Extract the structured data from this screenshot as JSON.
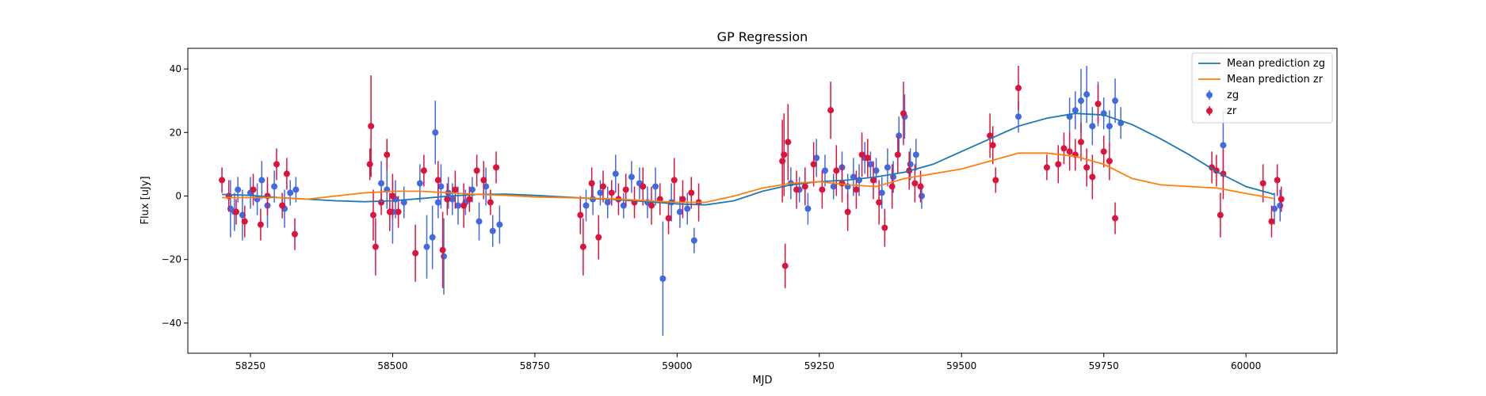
{
  "chart_data": {
    "type": "scatter",
    "title": "GP Regression",
    "xlabel": "MJD",
    "ylabel": "Flux [uJy]",
    "xlim": [
      58140,
      60160
    ],
    "ylim": [
      -49.5,
      46.5
    ],
    "xticks": [
      58250,
      58500,
      58750,
      59000,
      59250,
      59500,
      59750,
      60000
    ],
    "yticks": [
      -40,
      -20,
      0,
      20,
      40
    ],
    "grid": false,
    "legend_position": "top-right",
    "colors": {
      "zg": "#4169e1",
      "zr": "#dc143c",
      "mean_zg": "#1f77b4",
      "mean_zr": "#ff7f0e"
    },
    "lines": [
      {
        "name": "Mean prediction zg",
        "x": [
          58200,
          58250,
          58300,
          58350,
          58400,
          58450,
          58500,
          58550,
          58600,
          58650,
          58700,
          58750,
          58800,
          58850,
          58900,
          58950,
          59000,
          59050,
          59100,
          59150,
          59200,
          59250,
          59300,
          59350,
          59400,
          59450,
          59500,
          59550,
          59600,
          59650,
          59700,
          59750,
          59800,
          59850,
          59900,
          59950,
          60000,
          60050
        ],
        "y": [
          0.5,
          0.2,
          -0.5,
          -1.0,
          -1.5,
          -1.8,
          -1.5,
          -0.8,
          0.0,
          0.5,
          0.6,
          0.2,
          -0.3,
          -0.8,
          -1.2,
          -1.8,
          -2.5,
          -2.8,
          -1.5,
          1.5,
          3.5,
          4.5,
          5.0,
          6.0,
          7.5,
          10.0,
          14.0,
          18.0,
          22.0,
          24.5,
          26.0,
          25.5,
          22.5,
          18.0,
          13.0,
          7.5,
          3.0,
          0.5
        ]
      },
      {
        "name": "Mean prediction zr",
        "x": [
          58200,
          58250,
          58300,
          58350,
          58400,
          58450,
          58500,
          58550,
          58600,
          58650,
          58700,
          58750,
          58800,
          58850,
          58900,
          58950,
          59000,
          59050,
          59100,
          59150,
          59200,
          59250,
          59300,
          59350,
          59400,
          59450,
          59500,
          59550,
          59600,
          59650,
          59700,
          59750,
          59800,
          59850,
          59900,
          59950,
          60000,
          60050
        ],
        "y": [
          -0.5,
          -0.5,
          -0.5,
          -1.0,
          0.0,
          1.0,
          1.5,
          1.5,
          1.0,
          0.5,
          0.2,
          -0.3,
          -0.5,
          -0.7,
          -1.0,
          -1.5,
          -2.0,
          -2.0,
          0.0,
          2.5,
          4.0,
          4.5,
          3.5,
          3.0,
          5.5,
          7.0,
          8.5,
          11.0,
          13.5,
          13.5,
          12.5,
          10.0,
          5.5,
          3.5,
          3.0,
          2.5,
          0.8,
          -0.8
        ]
      }
    ],
    "series": [
      {
        "name": "zg",
        "x": [
          58215,
          58222,
          58228,
          58236,
          58250,
          58262,
          58270,
          58280,
          58292,
          58310,
          58320,
          58330,
          58480,
          58490,
          58500,
          58505,
          58520,
          58548,
          58560,
          58570,
          58575,
          58580,
          58585,
          58590,
          58598,
          58605,
          58615,
          58628,
          58640,
          58652,
          58664,
          58676,
          58688,
          58840,
          58852,
          58865,
          58878,
          58892,
          58906,
          58920,
          58934,
          58948,
          58962,
          58975,
          58990,
          59005,
          59018,
          59030,
          59200,
          59215,
          59230,
          59245,
          59260,
          59275,
          59290,
          59300,
          59310,
          59320,
          59330,
          59340,
          59350,
          59360,
          59370,
          59380,
          59390,
          59400,
          59410,
          59420,
          59430,
          59600,
          59690,
          59700,
          59710,
          59720,
          59730,
          59740,
          59750,
          59760,
          59770,
          59780,
          59960,
          60050,
          60060
        ],
        "y": [
          -4,
          -5,
          2,
          -6,
          1,
          -1,
          5,
          -3,
          3,
          -4,
          1,
          2,
          4,
          2,
          -5,
          -1,
          -2,
          4,
          -16,
          -13,
          20,
          -2,
          3,
          -19,
          1,
          -1,
          -3,
          -2,
          2,
          -8,
          3,
          -11,
          -9,
          -3,
          -1,
          1,
          -2,
          7,
          -3,
          6,
          4,
          -2,
          3,
          -26,
          -2,
          -5,
          -4,
          -14,
          4,
          2,
          -4,
          12,
          8,
          3,
          9,
          3,
          6,
          5,
          12,
          10,
          8,
          1,
          9,
          6,
          19,
          25,
          10,
          13,
          0,
          25,
          25,
          27,
          30,
          32,
          22,
          29,
          26,
          22,
          30,
          23,
          16,
          -4,
          -3
        ],
        "err": [
          9,
          6,
          4,
          8,
          5,
          5,
          6,
          7,
          5,
          6,
          4,
          4,
          7,
          6,
          10,
          6,
          5,
          6,
          10,
          10,
          10,
          5,
          7,
          12,
          5,
          5,
          6,
          4,
          4,
          6,
          6,
          5,
          6,
          5,
          5,
          4,
          5,
          6,
          4,
          5,
          5,
          5,
          6,
          18,
          6,
          5,
          5,
          4,
          5,
          4,
          5,
          6,
          5,
          4,
          5,
          4,
          6,
          5,
          5,
          4,
          4,
          5,
          6,
          5,
          6,
          7,
          5,
          5,
          4,
          5,
          6,
          6,
          10,
          9,
          6,
          7,
          5,
          5,
          7,
          5,
          11,
          5,
          5
        ]
      },
      {
        "name": "zr",
        "x": [
          58200,
          58212,
          58225,
          58240,
          58255,
          58268,
          58280,
          58296,
          58306,
          58314,
          58328,
          58460,
          58462,
          58466,
          58470,
          58480,
          58490,
          58495,
          58500,
          58510,
          58540,
          58555,
          58580,
          58588,
          58596,
          58610,
          58625,
          58635,
          58648,
          58660,
          58672,
          58682,
          58830,
          58835,
          58850,
          58862,
          58870,
          58885,
          58897,
          58910,
          58925,
          58940,
          58955,
          58970,
          58985,
          58995,
          59010,
          59025,
          59038,
          59185,
          59188,
          59190,
          59195,
          59210,
          59225,
          59240,
          59255,
          59270,
          59280,
          59290,
          59300,
          59315,
          59325,
          59335,
          59345,
          59355,
          59365,
          59378,
          59388,
          59398,
          59408,
          59418,
          59428,
          59550,
          59555,
          59560,
          59600,
          59650,
          59670,
          59680,
          59690,
          59700,
          59710,
          59720,
          59730,
          59740,
          59750,
          59760,
          59770,
          59940,
          59948,
          59955,
          59960,
          60030,
          60045,
          60055,
          60062
        ],
        "y": [
          5,
          0,
          -5,
          -8,
          2,
          -9,
          0,
          10,
          -3,
          7,
          -12,
          10,
          22,
          -6,
          -16,
          -2,
          13,
          -5,
          0,
          -5,
          -18,
          8,
          5,
          -17,
          -1,
          2,
          -3,
          -1,
          8,
          5,
          -2,
          9,
          -6,
          -16,
          4,
          -13,
          3,
          1,
          -1,
          2,
          -2,
          3,
          -3,
          -1,
          -7,
          5,
          -1,
          1,
          -2,
          11,
          13,
          -22,
          17,
          2,
          3,
          10,
          2,
          27,
          8,
          4,
          -5,
          2,
          13,
          12,
          5,
          -2,
          -10,
          3,
          13,
          26,
          8,
          4,
          3,
          19,
          16,
          5,
          34,
          9,
          10,
          15,
          14,
          13,
          17,
          9,
          6,
          29,
          14,
          11,
          -7,
          9,
          8,
          -6,
          7,
          4,
          -8,
          5,
          -1
        ],
        "err": [
          4,
          5,
          4,
          5,
          5,
          5,
          6,
          5,
          4,
          5,
          5,
          5,
          16,
          8,
          9,
          4,
          5,
          6,
          7,
          5,
          9,
          5,
          6,
          12,
          5,
          6,
          7,
          4,
          5,
          6,
          4,
          5,
          6,
          9,
          5,
          7,
          5,
          4,
          5,
          5,
          5,
          6,
          6,
          5,
          5,
          7,
          6,
          5,
          6,
          13,
          13,
          7,
          12,
          6,
          6,
          7,
          6,
          9,
          8,
          6,
          6,
          6,
          7,
          6,
          6,
          7,
          6,
          7,
          6,
          10,
          6,
          6,
          5,
          7,
          6,
          4,
          7,
          4,
          6,
          5,
          6,
          5,
          6,
          6,
          7,
          6,
          5,
          6,
          5,
          5,
          5,
          7,
          8,
          6,
          5,
          5,
          4
        ]
      }
    ],
    "legend": [
      "Mean prediction zg",
      "Mean prediction zr",
      "zg",
      "zr"
    ]
  }
}
